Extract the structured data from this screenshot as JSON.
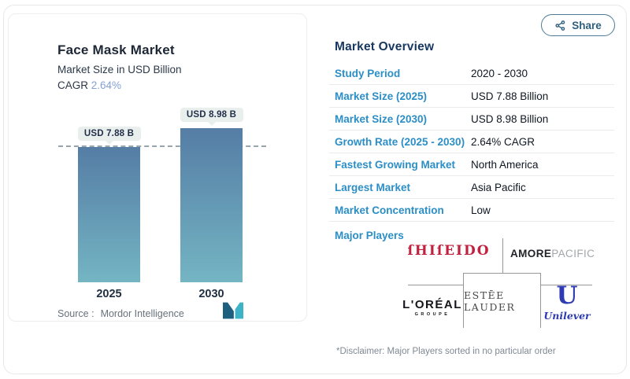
{
  "share_button": {
    "label": "Share"
  },
  "chart_card": {
    "title": "Face Mask Market",
    "subtitle": "Market Size in USD Billion",
    "cagr_label": "CAGR",
    "cagr_value": "2.64%",
    "source_label": "Source :",
    "source_name": "Mordor Intelligence"
  },
  "chart_data": {
    "type": "bar",
    "title": "Face Mask Market",
    "ylabel": "Market Size in USD Billion",
    "categories": [
      "2025",
      "2030"
    ],
    "values": [
      7.88,
      8.98
    ],
    "bar_labels": [
      "USD 7.88 B",
      "USD 8.98 B"
    ],
    "cagr_pct": 2.64,
    "reference_line_value": 7.88,
    "ylim": [
      0,
      9.5
    ],
    "grid": false,
    "legend": false,
    "bar_gradient": [
      "#557da5",
      "#74b5c3"
    ],
    "source": "Mordor Intelligence"
  },
  "overview": {
    "title": "Market Overview",
    "rows": [
      {
        "label": "Study Period",
        "value": "2020 - 2030"
      },
      {
        "label": "Market Size (2025)",
        "value": "USD 7.88 Billion"
      },
      {
        "label": "Market Size (2030)",
        "value": "USD 8.98 Billion"
      },
      {
        "label": "Growth Rate (2025 - 2030)",
        "value": "2.64% CAGR"
      },
      {
        "label": "Fastest Growing Market",
        "value": "North America"
      },
      {
        "label": "Largest Market",
        "value": "Asia Pacific"
      },
      {
        "label": "Market Concentration",
        "value": "Low"
      }
    ],
    "major_players_label": "Major Players",
    "players": {
      "shiseido": "ſHIſEIDO",
      "amorepacific_bold": "AMORE",
      "amorepacific_light": "PACIFIC",
      "loreal": "L'ORÉAL",
      "loreal_sub": "GROUPE",
      "estee_lauder": "ESTĒE LAUDER",
      "unilever_mark": "U",
      "unilever_script": "Unilever"
    },
    "disclaimer": "*Disclaimer: Major Players sorted in no particular order"
  },
  "colors": {
    "accent_teal": "#2b8ec6",
    "header_navy": "#17375e",
    "cagr_blue": "#85a0d7",
    "bar_gradient_top": "#557da5",
    "bar_gradient_bottom": "#74b5c3",
    "share_blue": "#2e5f7e",
    "shiseido_red": "#c2203f",
    "unilever_blue": "#2f3bb3"
  }
}
